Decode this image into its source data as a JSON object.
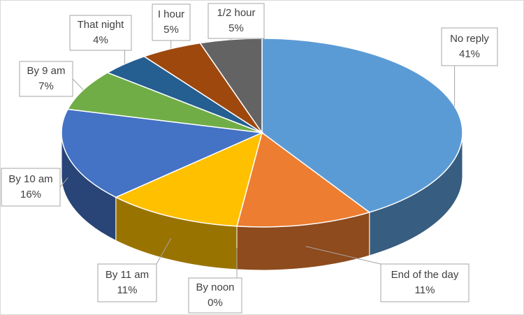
{
  "chart_data": {
    "type": "pie3d",
    "categories": [
      "No reply",
      "End of the day",
      "By noon",
      "By 11 am",
      "By 10 am",
      "By 9 am",
      "That night",
      "I hour",
      "1/2 hour"
    ],
    "values": [
      41,
      11,
      0,
      11,
      16,
      7,
      4,
      5,
      5
    ],
    "value_labels": [
      "41%",
      "11%",
      "0%",
      "11%",
      "16%",
      "7%",
      "4%",
      "5%",
      "5%"
    ],
    "colors": [
      "#5b9bd5",
      "#ed7d31",
      "#a5a5a5",
      "#ffc000",
      "#4472c4",
      "#70ad47",
      "#255e91",
      "#9e480e",
      "#636363"
    ]
  }
}
